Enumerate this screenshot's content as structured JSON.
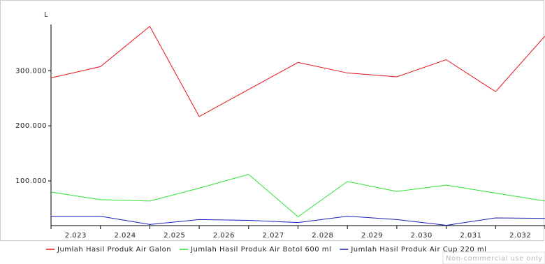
{
  "chart_data": {
    "type": "line",
    "y_label": "L",
    "categories": [
      "2.023",
      "2.024",
      "2.025",
      "2.026",
      "2.027",
      "2.028",
      "2.029",
      "2.030",
      "2.031",
      "2.032",
      null
    ],
    "series": [
      {
        "name": "Jumlah Hasil Produk Air Galon",
        "color": "#e8101a",
        "values": [
          287000,
          307500,
          380500,
          217000,
          266000,
          315000,
          296000,
          289000,
          320000,
          262000,
          363000
        ]
      },
      {
        "name": "Jumlah Hasil Produk Air Botol 600 ml",
        "color": "#2ee02e",
        "values": [
          80000,
          66000,
          63500,
          87000,
          112000,
          35000,
          99000,
          81000,
          92500,
          78000,
          63500
        ]
      },
      {
        "name": "Jumlah Hasil Produk Air Cup 220 ml",
        "color": "#1c1cb8",
        "values": [
          36000,
          36000,
          21000,
          30000,
          28500,
          24500,
          36000,
          30000,
          19500,
          33000,
          32000
        ]
      }
    ],
    "ylim": [
      19000,
      384000
    ],
    "yticks": [
      {
        "value": 100000,
        "label": "100.000"
      },
      {
        "value": 200000,
        "label": "200.000"
      },
      {
        "value": 300000,
        "label": "300.000"
      }
    ],
    "watermark": "Non-commercial use only"
  }
}
